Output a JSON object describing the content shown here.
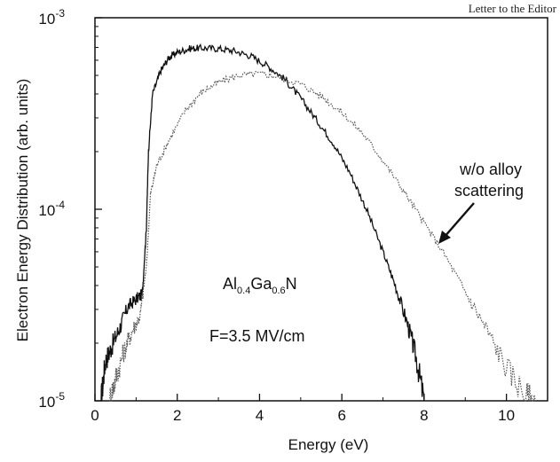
{
  "header": {
    "text": "Letter to the Editor"
  },
  "chart_data": {
    "type": "line",
    "xlabel": "Energy (eV)",
    "ylabel": "Electron Energy Distribution (arb. units)",
    "xlim": [
      0,
      11
    ],
    "ylim": [
      1e-05,
      0.001
    ],
    "yscale": "log",
    "x_ticks": [
      "0",
      "2",
      "4",
      "6",
      "8",
      "10"
    ],
    "y_ticks": [
      {
        "value": 1e-05,
        "base": "10",
        "exp": "-5"
      },
      {
        "value": 0.0001,
        "base": "10",
        "exp": "-4"
      },
      {
        "value": 0.001,
        "base": "10",
        "exp": "-3"
      }
    ],
    "grid": false,
    "series": [
      {
        "style": "solid",
        "color": "#111111",
        "points": [
          [
            0.15,
            1e-05
          ],
          [
            0.25,
            1.6e-05
          ],
          [
            0.4,
            1.9e-05
          ],
          [
            0.6,
            2.4e-05
          ],
          [
            0.8,
            3.1e-05
          ],
          [
            1.0,
            3.4e-05
          ],
          [
            1.15,
            3.6e-05
          ],
          [
            1.25,
            8e-05
          ],
          [
            1.3,
            0.0002
          ],
          [
            1.4,
            0.0004
          ],
          [
            1.6,
            0.00053
          ],
          [
            1.8,
            0.00062
          ],
          [
            2.0,
            0.00066
          ],
          [
            2.3,
            0.00069
          ],
          [
            2.6,
            0.000695
          ],
          [
            3.0,
            0.00069
          ],
          [
            3.4,
            0.00067
          ],
          [
            3.8,
            0.00063
          ],
          [
            4.2,
            0.00056
          ],
          [
            4.6,
            0.00048
          ],
          [
            5.0,
            0.00038
          ],
          [
            5.4,
            0.00029
          ],
          [
            5.8,
            0.00022
          ],
          [
            6.2,
            0.000155
          ],
          [
            6.6,
            0.0001
          ],
          [
            7.0,
            6e-05
          ],
          [
            7.3,
            4e-05
          ],
          [
            7.6,
            2.5e-05
          ],
          [
            7.8,
            1.7e-05
          ],
          [
            8.0,
            1e-05
          ]
        ]
      },
      {
        "style": "dotted",
        "color": "#555555",
        "points": [
          [
            0.35,
            1e-05
          ],
          [
            0.5,
            1.3e-05
          ],
          [
            0.7,
            1.8e-05
          ],
          [
            0.9,
            2.3e-05
          ],
          [
            1.1,
            2.8e-05
          ],
          [
            1.25,
            5e-05
          ],
          [
            1.35,
            0.00012
          ],
          [
            1.5,
            0.00017
          ],
          [
            1.8,
            0.00023
          ],
          [
            2.2,
            0.00033
          ],
          [
            2.6,
            0.00041
          ],
          [
            3.0,
            0.00046
          ],
          [
            3.5,
            0.0005
          ],
          [
            4.0,
            0.00051
          ],
          [
            4.5,
            0.00049
          ],
          [
            5.0,
            0.00045
          ],
          [
            5.5,
            0.00039
          ],
          [
            6.0,
            0.00032
          ],
          [
            6.5,
            0.00025
          ],
          [
            7.0,
            0.00018
          ],
          [
            7.5,
            0.000125
          ],
          [
            8.0,
            8.5e-05
          ],
          [
            8.5,
            5.8e-05
          ],
          [
            9.0,
            3.7e-05
          ],
          [
            9.5,
            2.4e-05
          ],
          [
            10.0,
            1.5e-05
          ],
          [
            10.5,
            1.05e-05
          ],
          [
            10.7,
            1e-05
          ]
        ]
      }
    ],
    "annotations": {
      "label1": "w/o alloy",
      "label2": "scattering",
      "material_pre": "Al",
      "material_sub1": "0.4",
      "material_mid": "Ga",
      "material_sub2": "0.6",
      "material_post": "N",
      "field": "F=3.5 MV/cm"
    }
  }
}
